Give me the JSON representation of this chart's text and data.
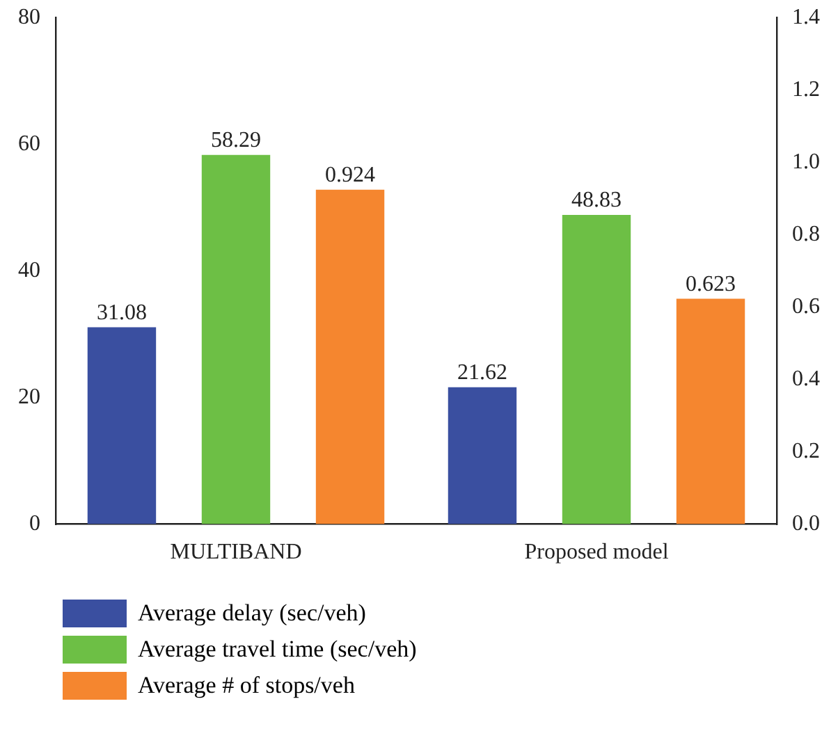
{
  "chart_data": {
    "type": "bar",
    "categories": [
      "MULTIBAND",
      "Proposed model"
    ],
    "series": [
      {
        "name": "Average delay (sec/veh)",
        "color": "#3a4fa0",
        "values": [
          31.08,
          21.62
        ]
      },
      {
        "name": "Average travel time (sec/veh)",
        "color": "#6dbf45",
        "values": [
          58.29,
          48.83
        ]
      },
      {
        "name": "Average # of stops/veh",
        "color": "#f5862f",
        "values": [
          0.924,
          0.623
        ],
        "axis": "y2"
      }
    ],
    "ylim": [
      0,
      80
    ],
    "yticks": [
      0,
      20,
      40,
      60,
      80
    ],
    "y2lim": [
      0,
      1.4
    ],
    "y2ticks": [
      {
        "value": 0,
        "label": "0.0"
      },
      0.2,
      0.4,
      0.6,
      0.8,
      {
        "value": 1,
        "label": "1.0"
      },
      1.2,
      1.4
    ],
    "data_labels": true,
    "grid": false,
    "legend": "bottom"
  }
}
